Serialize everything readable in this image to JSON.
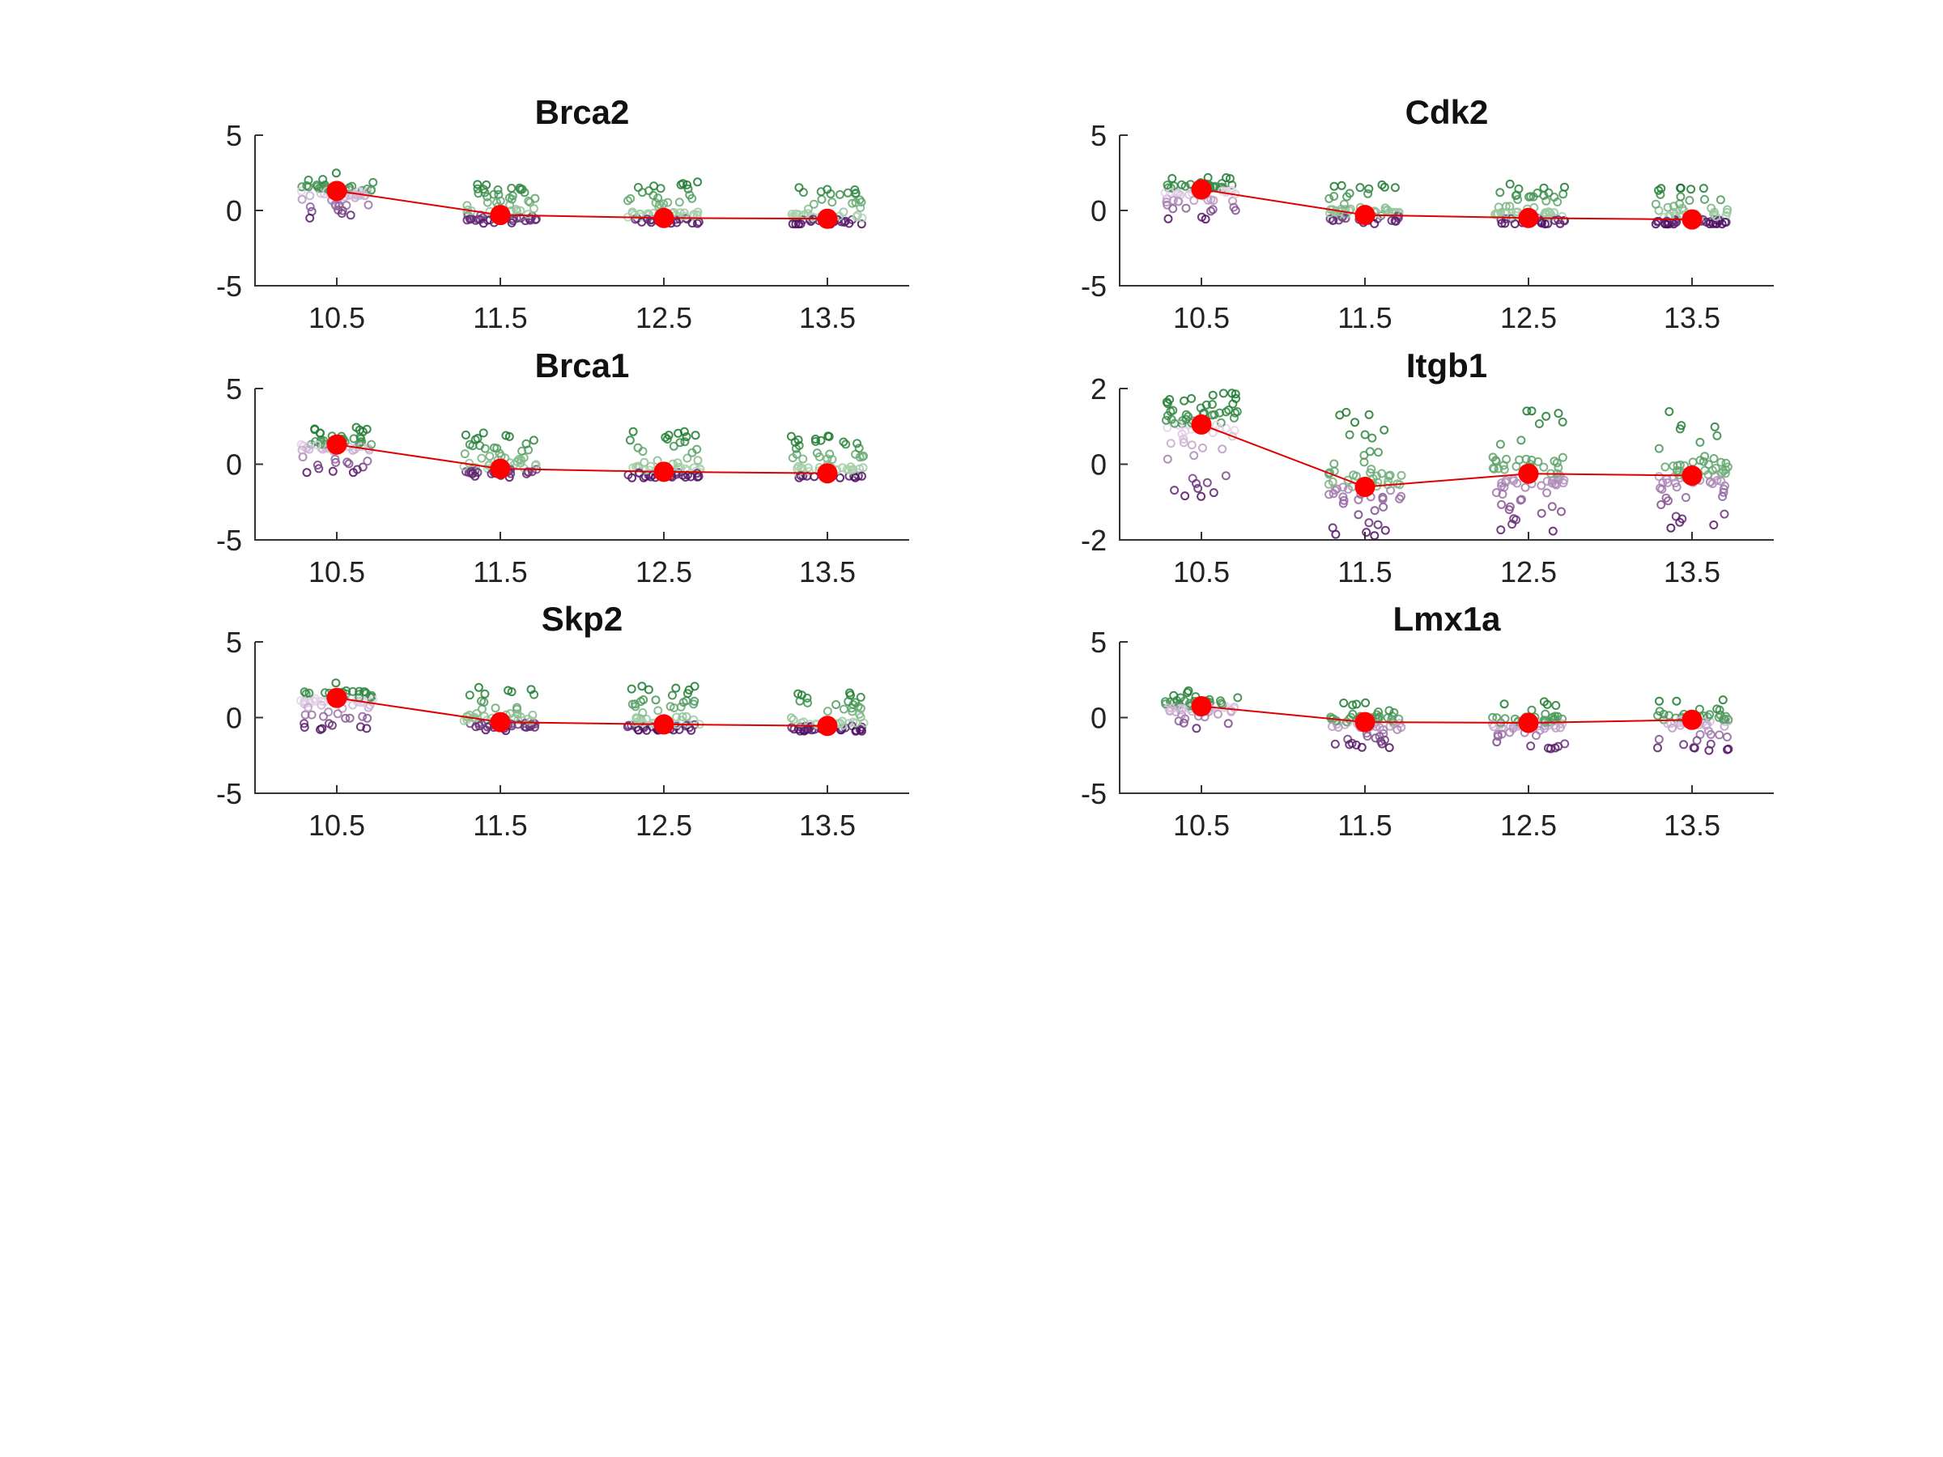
{
  "chart_data": [
    {
      "type": "scatter",
      "title": "Brca2",
      "categories": [
        "10.5",
        "11.5",
        "12.5",
        "13.5"
      ],
      "ylim": [
        -5,
        5
      ],
      "yticks": [
        -5,
        0,
        5
      ],
      "means": [
        1.3,
        -0.3,
        -0.5,
        -0.55
      ],
      "spread": [
        [
          -0.6,
          2.5
        ],
        [
          -0.9,
          2.0
        ],
        [
          -0.9,
          2.0
        ],
        [
          -0.9,
          1.8
        ]
      ],
      "grid": false
    },
    {
      "type": "scatter",
      "title": "Cdk2",
      "categories": [
        "10.5",
        "11.5",
        "12.5",
        "13.5"
      ],
      "ylim": [
        -5,
        5
      ],
      "yticks": [
        -5,
        0,
        5
      ],
      "means": [
        1.4,
        -0.3,
        -0.5,
        -0.6
      ],
      "spread": [
        [
          -0.6,
          2.3
        ],
        [
          -0.9,
          1.8
        ],
        [
          -0.9,
          1.8
        ],
        [
          -0.9,
          1.6
        ]
      ],
      "grid": false
    },
    {
      "type": "scatter",
      "title": "Brca1",
      "categories": [
        "10.5",
        "11.5",
        "12.5",
        "13.5"
      ],
      "ylim": [
        -5,
        5
      ],
      "yticks": [
        -5,
        0,
        5
      ],
      "means": [
        1.3,
        -0.3,
        -0.5,
        -0.6
      ],
      "spread": [
        [
          -0.6,
          2.5
        ],
        [
          -0.9,
          2.1
        ],
        [
          -0.9,
          2.2
        ],
        [
          -0.9,
          1.9
        ]
      ],
      "grid": false
    },
    {
      "type": "scatter",
      "title": "Itgb1",
      "categories": [
        "10.5",
        "11.5",
        "12.5",
        "13.5"
      ],
      "ylim": [
        -2,
        2
      ],
      "yticks": [
        -2,
        0,
        2
      ],
      "means": [
        1.05,
        -0.6,
        -0.25,
        -0.3
      ],
      "spread": [
        [
          -0.9,
          2.0
        ],
        [
          -1.9,
          1.4
        ],
        [
          -1.9,
          1.6
        ],
        [
          -1.7,
          1.4
        ]
      ],
      "grid": false
    },
    {
      "type": "scatter",
      "title": "Skp2",
      "categories": [
        "10.5",
        "11.5",
        "12.5",
        "13.5"
      ],
      "ylim": [
        -5,
        5
      ],
      "yticks": [
        -5,
        0,
        5
      ],
      "means": [
        1.3,
        -0.3,
        -0.45,
        -0.55
      ],
      "spread": [
        [
          -0.8,
          2.3
        ],
        [
          -0.9,
          2.0
        ],
        [
          -0.9,
          2.1
        ],
        [
          -0.9,
          1.8
        ]
      ],
      "grid": false
    },
    {
      "type": "scatter",
      "title": "Lmx1a",
      "categories": [
        "10.5",
        "11.5",
        "12.5",
        "13.5"
      ],
      "ylim": [
        -5,
        5
      ],
      "yticks": [
        -5,
        0,
        5
      ],
      "means": [
        0.75,
        -0.3,
        -0.35,
        -0.15
      ],
      "spread": [
        [
          -0.9,
          1.8
        ],
        [
          -2.0,
          1.2
        ],
        [
          -2.2,
          1.2
        ],
        [
          -2.2,
          1.3
        ]
      ],
      "grid": false
    }
  ],
  "colors": {
    "mean_marker": "#ff0000",
    "mean_line": "#e00000",
    "high_expression": "#1a7a2e",
    "low_expression": "#4b0a5e",
    "axis": "#333333"
  }
}
